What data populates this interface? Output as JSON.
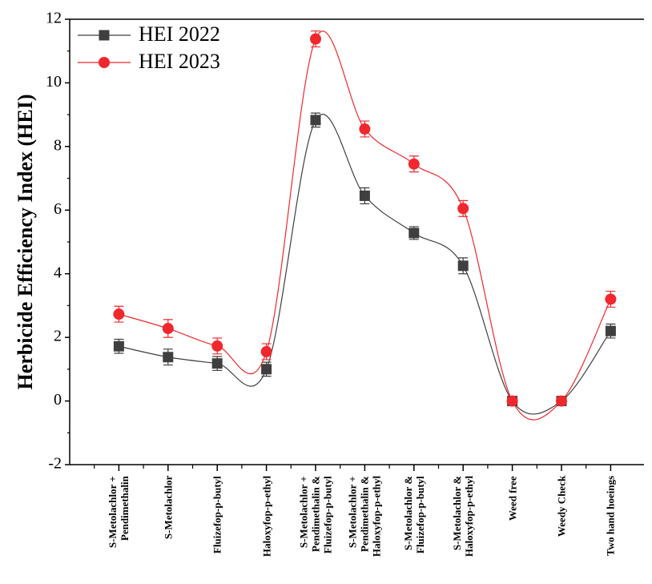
{
  "chart_data": {
    "type": "line",
    "y_label": "Herbicide Efficiency Index (HEI)",
    "categories": [
      "S-Metolachlor + Pendimethalin",
      "S-Metolachlor",
      "Fluizefop-p-butyl",
      "Haloxyfop-p-ethyl",
      "S-Metolachlor + Pendimethalin & Fluizefop-p-butyl",
      "S-Metolachlor + Pendimethalin & Haloxyfop-p-ethyl",
      "S-Metolachlor & Fluizefop-p-butyl",
      "S-Metolachlor & Haloxyfop-p-ethyl",
      "Weed free",
      "Weedy Check",
      "Two hand hoeings"
    ],
    "series": [
      {
        "name": "HEI 2022",
        "color": "#3f3f3f",
        "marker": "square",
        "values": [
          1.72,
          1.38,
          1.18,
          1.0,
          8.83,
          6.45,
          5.28,
          4.25,
          0,
          0,
          2.2
        ],
        "errors": [
          0.22,
          0.25,
          0.22,
          0.22,
          0.22,
          0.25,
          0.2,
          0.25,
          0.05,
          0.05,
          0.22
        ]
      },
      {
        "name": "HEI 2023",
        "color": "#f0282d",
        "marker": "circle",
        "values": [
          2.73,
          2.28,
          1.73,
          1.55,
          11.38,
          8.55,
          7.45,
          6.05,
          0,
          0,
          3.2
        ],
        "errors": [
          0.25,
          0.28,
          0.25,
          0.25,
          0.25,
          0.25,
          0.25,
          0.25,
          0.05,
          0.05,
          0.25
        ]
      }
    ],
    "ylim": [
      -2,
      12
    ],
    "yticks": [
      -2,
      0,
      2,
      4,
      6,
      8,
      10,
      12
    ],
    "legend": "upper left",
    "smooth": true
  }
}
